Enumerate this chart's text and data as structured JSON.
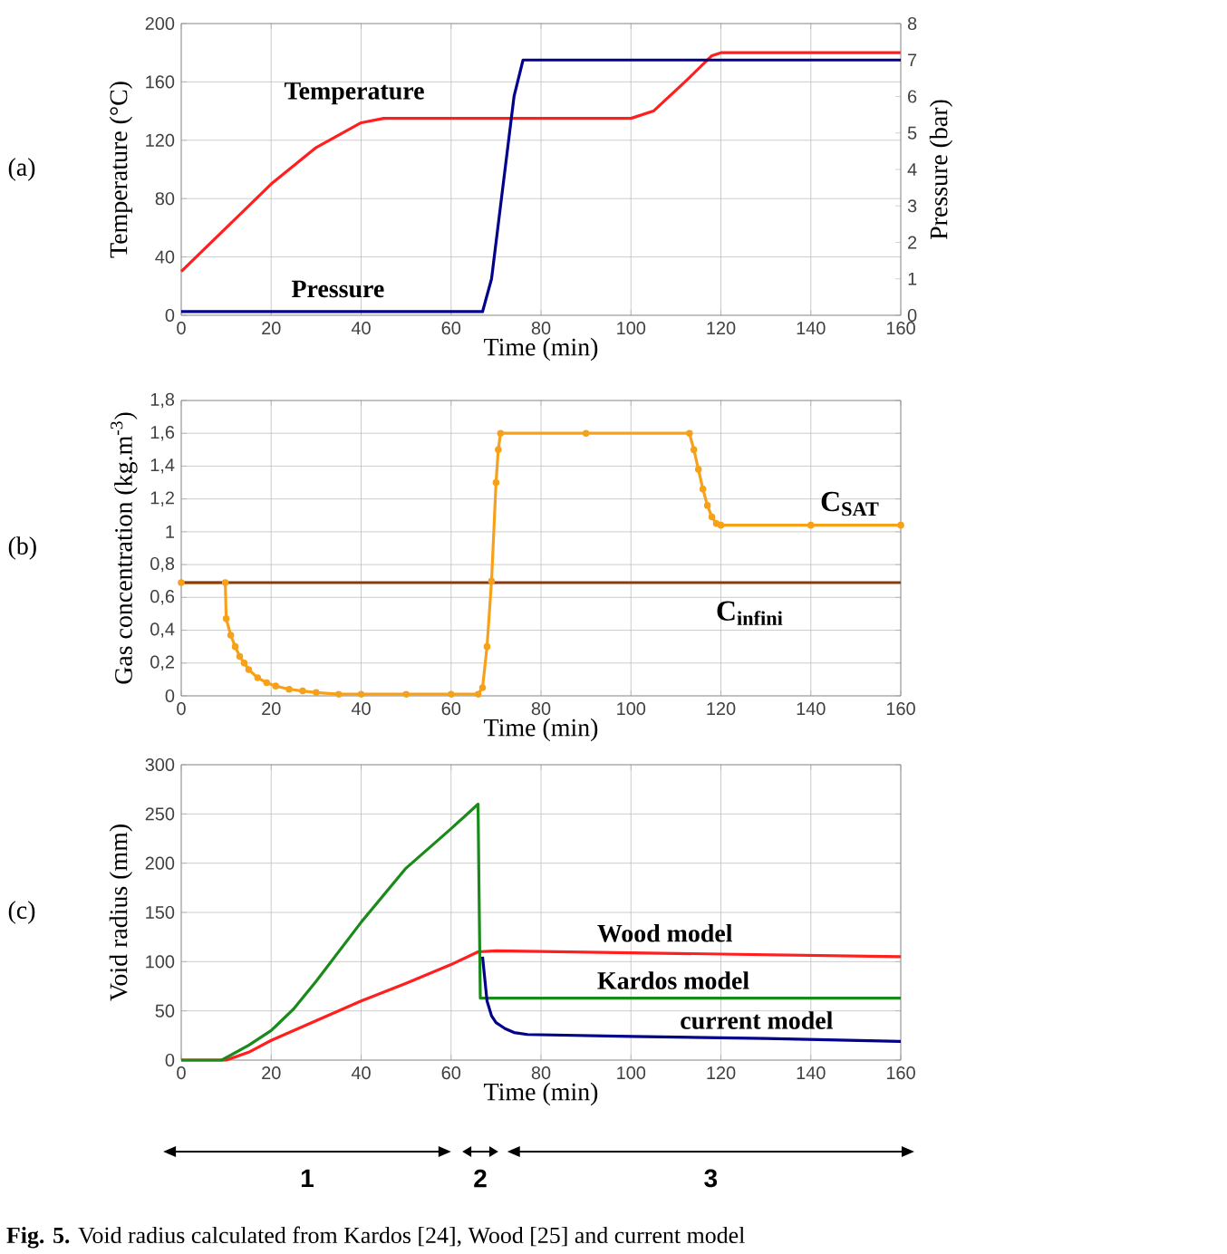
{
  "chart_data": [
    {
      "type": "line",
      "xlabel": "Time (min)",
      "ylabel": "Temperature (°C)",
      "y2label": "Pressure (bar)",
      "annotations": [
        "(a)"
      ],
      "xlim": [
        0,
        160
      ],
      "xticks": [
        0,
        20,
        40,
        60,
        80,
        100,
        120,
        140,
        160
      ],
      "ylim": [
        0,
        200
      ],
      "yticks": [
        0,
        40,
        80,
        120,
        160,
        200
      ],
      "y2lim": [
        0,
        8
      ],
      "y2ticks": [
        0,
        1,
        2,
        3,
        4,
        5,
        6,
        7,
        8
      ],
      "grid": true,
      "series": [
        {
          "name": "Temperature",
          "color": "#ff1f1f",
          "x": [
            0,
            10,
            20,
            30,
            40,
            45,
            100,
            105,
            112,
            118,
            120,
            160
          ],
          "values": [
            30,
            60,
            90,
            115,
            132,
            135,
            135,
            140,
            160,
            178,
            180,
            180
          ]
        },
        {
          "name": "Pressure",
          "color": "#00008b",
          "axis": "y2",
          "x": [
            0,
            67,
            69,
            71.5,
            74,
            76,
            160
          ],
          "values": [
            0.1,
            0.1,
            1,
            3.5,
            6,
            7,
            7
          ]
        }
      ]
    },
    {
      "type": "line",
      "xlabel": "Time (min)",
      "ylabel": "Gas concentration (kg.m$^{-3}$)",
      "annotations": [
        "(b)"
      ],
      "xlim": [
        0,
        160
      ],
      "xticks": [
        0,
        20,
        40,
        60,
        80,
        100,
        120,
        140,
        160
      ],
      "ylim": [
        0,
        1.8
      ],
      "yticks": [
        0,
        {
          "value": 0.2,
          "label": "0,2"
        },
        {
          "value": 0.4,
          "label": "0,4"
        },
        {
          "value": 0.6,
          "label": "0,6"
        },
        {
          "value": 0.8,
          "label": "0,8"
        },
        1,
        {
          "value": 1.2,
          "label": "1,2"
        },
        {
          "value": 1.4,
          "label": "1,4"
        },
        {
          "value": 1.6,
          "label": "1,6"
        },
        {
          "value": 1.8,
          "label": "1,8"
        }
      ],
      "grid": true,
      "series": [
        {
          "name": "C$_{SAT}$",
          "color": "#f7a11a",
          "marker": "circle",
          "x": [
            0,
            9.8,
            10,
            11,
            12,
            13,
            14,
            15,
            17,
            19,
            21,
            24,
            27,
            30,
            35,
            40,
            50,
            60,
            66,
            67,
            68,
            69,
            70,
            70.5,
            71,
            90,
            113,
            114,
            115,
            116,
            117,
            118,
            119,
            120,
            140,
            160
          ],
          "values": [
            0.69,
            0.69,
            0.47,
            0.37,
            0.3,
            0.24,
            0.2,
            0.16,
            0.11,
            0.08,
            0.06,
            0.04,
            0.03,
            0.02,
            0.01,
            0.01,
            0.01,
            0.01,
            0.01,
            0.05,
            0.3,
            0.7,
            1.3,
            1.5,
            1.6,
            1.6,
            1.6,
            1.5,
            1.38,
            1.26,
            1.16,
            1.09,
            1.05,
            1.04,
            1.04,
            1.04
          ]
        },
        {
          "name": "C$_{infini}$",
          "color": "#8b3a0e",
          "x": [
            0,
            160
          ],
          "values": [
            0.69,
            0.69
          ]
        }
      ]
    },
    {
      "type": "line",
      "xlabel": "Time (min)",
      "ylabel": "Void radius (mm)",
      "annotations": [
        "(c)",
        "**Fig. 5.** Void radius calculated from Kardos [24], Wood [25] and current model",
        "1",
        "2",
        "3"
      ],
      "xlim": [
        0,
        160
      ],
      "xticks": [
        0,
        20,
        40,
        60,
        80,
        100,
        120,
        140,
        160
      ],
      "ylim": [
        0,
        300
      ],
      "yticks": [
        0,
        50,
        100,
        150,
        200,
        250,
        300
      ],
      "grid": true,
      "series": [
        {
          "name": "Wood model",
          "color": "#ff1f1f",
          "x": [
            0,
            10,
            15,
            20,
            30,
            40,
            50,
            60,
            66,
            70,
            100,
            130,
            160
          ],
          "values": [
            0,
            0,
            8,
            20,
            40,
            60,
            78,
            97,
            110,
            111,
            109,
            107,
            105
          ]
        },
        {
          "name": "Kardos model",
          "color": "#1a8a1a",
          "x": [
            0,
            9,
            15,
            20,
            25,
            30,
            40,
            50,
            60,
            66,
            66.5,
            100,
            160
          ],
          "values": [
            0,
            0,
            15,
            30,
            52,
            80,
            140,
            195,
            235,
            260,
            63,
            63,
            63
          ]
        },
        {
          "name": "current model",
          "color": "#00008b",
          "x": [
            67,
            68,
            69,
            70,
            72,
            74,
            77,
            100,
            130,
            160
          ],
          "values": [
            105,
            60,
            45,
            38,
            32,
            28,
            26,
            24,
            22,
            19
          ]
        }
      ]
    }
  ]
}
